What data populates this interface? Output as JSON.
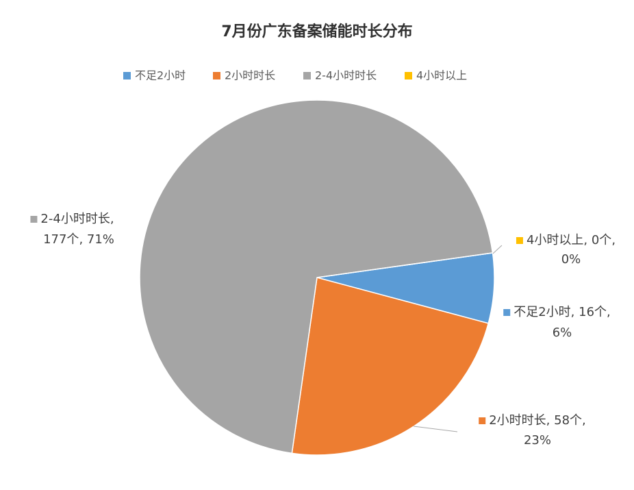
{
  "chart_data": {
    "type": "pie",
    "title": "7月份广东备案储能时长分布",
    "categories": [
      "不足2小时",
      "2小时时长",
      "2-4小时时长",
      "4小时以上"
    ],
    "values": [
      16,
      58,
      177,
      0
    ],
    "value_labels": [
      "16个",
      "58个",
      "177个",
      "0个"
    ],
    "percent_labels": [
      "6%",
      "23%",
      "71%",
      "0%"
    ],
    "label_separator": ", ",
    "colors": [
      "#5b9bd5",
      "#ed7d31",
      "#a5a5a5",
      "#ffc000"
    ],
    "start_angle": 82,
    "legend": "top"
  }
}
